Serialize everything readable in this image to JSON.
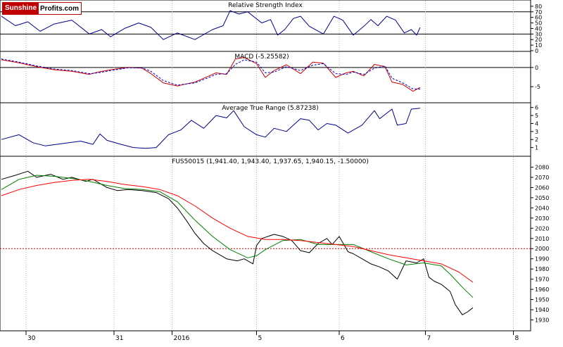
{
  "logo": {
    "part1": "Sunshine",
    "part2": "Profits.com"
  },
  "chart_data": [
    {
      "panel": "rsi",
      "type": "line",
      "title": "Relative Strength Index",
      "ylim": [
        0,
        90
      ],
      "yticks": [
        0,
        10,
        20,
        30,
        40,
        50,
        60,
        70,
        80
      ],
      "reference_lines": [
        30,
        70
      ],
      "series": [
        {
          "color": "#00008b",
          "t": [
            0,
            8,
            15,
            22,
            30,
            40,
            50,
            57,
            62,
            70,
            78,
            85,
            92,
            100,
            110,
            120,
            126,
            130,
            135,
            140,
            148,
            153,
            157,
            161,
            166,
            170,
            175,
            183,
            189,
            194,
            200,
            206,
            210,
            214,
            219,
            224,
            229,
            233,
            236,
            238
          ],
          "values": [
            62,
            45,
            52,
            35,
            48,
            55,
            30,
            38,
            25,
            40,
            50,
            42,
            20,
            32,
            20,
            38,
            45,
            72,
            66,
            70,
            50,
            56,
            28,
            38,
            58,
            62,
            44,
            30,
            62,
            55,
            28,
            44,
            56,
            45,
            62,
            55,
            32,
            38,
            28,
            42
          ]
        }
      ]
    },
    {
      "panel": "macd",
      "type": "line",
      "title": "MACD (-5.25582)",
      "ylim": [
        -9,
        4
      ],
      "yticks": [
        -5,
        0
      ],
      "reference_lines": [
        0
      ],
      "series": [
        {
          "color": "#cc0000",
          "t": [
            0,
            10,
            20,
            30,
            40,
            50,
            55,
            62,
            72,
            80,
            85,
            92,
            100,
            110,
            118,
            122,
            128,
            133,
            138,
            145,
            150,
            155,
            162,
            170,
            177,
            183,
            190,
            196,
            200,
            206,
            212,
            218,
            222,
            228,
            234,
            238
          ],
          "values": [
            2.0,
            1.2,
            0.2,
            -0.6,
            -1.0,
            -1.8,
            -1.2,
            -0.6,
            0,
            -0.2,
            -1.6,
            -4.0,
            -4.8,
            -3.8,
            -2.2,
            -1.4,
            -1.8,
            2.2,
            2.6,
            1.0,
            -2.6,
            -0.8,
            0.7,
            -1.6,
            1.4,
            1.1,
            -2.6,
            -1.4,
            -1.0,
            -2.2,
            0.8,
            0.2,
            -3.8,
            -4.4,
            -6.2,
            -5.2
          ]
        },
        {
          "color": "#0000cc",
          "dashed": true,
          "t": [
            0,
            10,
            20,
            30,
            40,
            50,
            55,
            62,
            72,
            80,
            85,
            92,
            100,
            110,
            118,
            122,
            128,
            133,
            138,
            145,
            150,
            155,
            162,
            170,
            177,
            183,
            190,
            196,
            200,
            206,
            212,
            218,
            222,
            228,
            234,
            238
          ],
          "values": [
            2.2,
            1.4,
            0.4,
            -0.4,
            -0.8,
            -1.6,
            -1.4,
            -0.8,
            -0.1,
            -0.1,
            -1.0,
            -3.4,
            -4.6,
            -4.0,
            -2.6,
            -1.8,
            -1.6,
            0.8,
            2.0,
            1.4,
            -1.4,
            -1.2,
            0.2,
            -0.8,
            0.6,
            1.0,
            -1.6,
            -1.8,
            -1.2,
            -1.8,
            -0.2,
            0.4,
            -2.8,
            -4.0,
            -5.6,
            -5.6
          ]
        }
      ]
    },
    {
      "panel": "atr",
      "type": "line",
      "title": "Average True Range (5.87238)",
      "ylim": [
        0,
        6.5
      ],
      "yticks": [
        1,
        2,
        3,
        4,
        5,
        6
      ],
      "series": [
        {
          "color": "#00008b",
          "t": [
            0,
            10,
            18,
            25,
            35,
            45,
            52,
            56,
            60,
            68,
            75,
            82,
            88,
            95,
            102,
            108,
            115,
            122,
            128,
            132,
            138,
            145,
            150,
            155,
            162,
            170,
            175,
            180,
            185,
            190,
            197,
            205,
            212,
            215,
            222,
            225,
            230,
            233,
            238
          ],
          "values": [
            2.0,
            2.6,
            1.6,
            1.2,
            1.5,
            1.8,
            1.4,
            2.7,
            1.9,
            1.4,
            1.0,
            0.9,
            1.0,
            2.6,
            3.2,
            4.4,
            3.4,
            5.0,
            4.7,
            5.6,
            3.6,
            2.6,
            2.3,
            3.4,
            3.0,
            4.6,
            4.4,
            3.2,
            4.0,
            3.8,
            2.8,
            3.8,
            5.6,
            4.6,
            5.8,
            3.8,
            4.0,
            5.8,
            5.9
          ]
        }
      ]
    },
    {
      "panel": "price",
      "type": "line",
      "title": "FUS50015 (1,941.40, 1,943.40, 1,937.65, 1,940.15, -1.50000)",
      "ylim": [
        1920,
        2090
      ],
      "yticks": [
        1930,
        1940,
        1950,
        1960,
        1970,
        1980,
        1990,
        2000,
        2010,
        2020,
        2030,
        2040,
        2050,
        2060,
        2070,
        2080
      ],
      "reference_lines": [
        2000
      ],
      "x_labels": [
        "30",
        "31",
        "2016",
        "5",
        "6",
        "7",
        "8"
      ],
      "x_label_t": [
        14,
        64,
        97,
        145,
        192,
        241,
        291
      ],
      "series": [
        {
          "name": "price",
          "color": "#000000",
          "t": [
            0,
            8,
            15,
            20,
            28,
            35,
            40,
            48,
            52,
            56,
            60,
            66,
            72,
            80,
            88,
            95,
            100,
            105,
            110,
            115,
            120,
            128,
            134,
            138,
            143,
            145,
            148,
            155,
            160,
            165,
            170,
            175,
            180,
            185,
            188,
            192,
            197,
            200,
            205,
            210,
            215,
            220,
            225,
            230,
            236,
            240,
            243,
            246,
            250,
            255,
            258,
            262,
            265,
            268
          ],
          "values": [
            2068,
            2072,
            2076,
            2070,
            2073,
            2068,
            2070,
            2066,
            2068,
            2064,
            2060,
            2057,
            2058,
            2057,
            2055,
            2049,
            2040,
            2028,
            2015,
            2005,
            1998,
            1990,
            1988,
            1990,
            1985,
            2003,
            2010,
            2014,
            2012,
            2008,
            1998,
            1996,
            2005,
            2010,
            2004,
            2012,
            1997,
            1995,
            1990,
            1985,
            1982,
            1978,
            1970,
            1988,
            1986,
            1990,
            1972,
            1968,
            1965,
            1958,
            1945,
            1935,
            1938,
            1942
          ]
        },
        {
          "name": "short moving average",
          "color": "#008000",
          "t": [
            0,
            10,
            20,
            30,
            40,
            50,
            60,
            70,
            80,
            90,
            100,
            110,
            120,
            130,
            140,
            145,
            150,
            160,
            170,
            180,
            190,
            200,
            210,
            220,
            230,
            240,
            250,
            255,
            262,
            268
          ],
          "values": [
            2058,
            2068,
            2072,
            2071,
            2069,
            2066,
            2062,
            2059,
            2058,
            2056,
            2046,
            2028,
            2012,
            1999,
            1991,
            1993,
            1999,
            2008,
            2009,
            2004,
            2004,
            2004,
            1997,
            1990,
            1984,
            1986,
            1983,
            1975,
            1962,
            1952
          ]
        },
        {
          "name": "long moving average",
          "color": "#ff0000",
          "t": [
            0,
            10,
            20,
            30,
            40,
            50,
            60,
            70,
            80,
            90,
            100,
            110,
            120,
            130,
            140,
            150,
            160,
            170,
            180,
            190,
            200,
            210,
            220,
            230,
            240,
            250,
            260,
            268
          ],
          "values": [
            2052,
            2058,
            2062,
            2065,
            2067,
            2068,
            2066,
            2063,
            2061,
            2058,
            2052,
            2042,
            2030,
            2020,
            2012,
            2009,
            2009,
            2008,
            2006,
            2004,
            2002,
            1998,
            1994,
            1991,
            1988,
            1985,
            1977,
            1967
          ]
        }
      ]
    }
  ]
}
